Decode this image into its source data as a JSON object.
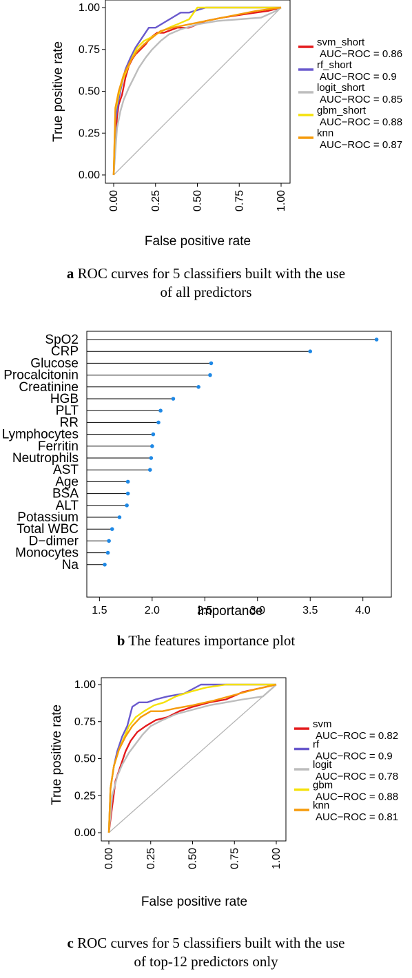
{
  "captions": {
    "a_letter": "a",
    "a_line1": "ROC curves for 5 classifiers built with the use",
    "a_line2": "of all predictors",
    "b_letter": "b",
    "b_line1": "The features importance plot",
    "c_letter": "c",
    "c_line1": "ROC curves for 5 classifiers built with the use",
    "c_line2": "of top-12 predictors only"
  },
  "chart_data": [
    {
      "type": "line",
      "xlabel": "False positive rate",
      "ylabel": "True positive rate",
      "xlim": [
        0,
        1
      ],
      "ylim": [
        0,
        1
      ],
      "ticks": [
        "0.00",
        "0.25",
        "0.50",
        "0.75",
        "1.00"
      ],
      "legend_position": "right",
      "diagonal": true,
      "series": [
        {
          "name": "svm_short",
          "auc_label": "AUC−ROC = 0.86",
          "color": "#e41a1c",
          "x": [
            0,
            0.01,
            0.02,
            0.03,
            0.05,
            0.07,
            0.09,
            0.11,
            0.13,
            0.16,
            0.19,
            0.22,
            0.26,
            0.3,
            0.38,
            0.45,
            0.55,
            0.65,
            0.78,
            0.92,
            1
          ],
          "y": [
            0,
            0.18,
            0.35,
            0.42,
            0.48,
            0.58,
            0.65,
            0.69,
            0.72,
            0.75,
            0.78,
            0.82,
            0.85,
            0.85,
            0.88,
            0.88,
            0.92,
            0.94,
            0.96,
            0.98,
            1
          ]
        },
        {
          "name": "rf_short",
          "auc_label": "AUC−ROC = 0.9",
          "color": "#6a5acd",
          "x": [
            0,
            0.01,
            0.03,
            0.05,
            0.07,
            0.1,
            0.13,
            0.17,
            0.21,
            0.25,
            0.3,
            0.35,
            0.4,
            0.45,
            0.55,
            0.7,
            0.85,
            1
          ],
          "y": [
            0,
            0.32,
            0.45,
            0.55,
            0.63,
            0.7,
            0.76,
            0.82,
            0.88,
            0.88,
            0.91,
            0.94,
            0.97,
            0.97,
            1.0,
            1.0,
            1.0,
            1
          ]
        },
        {
          "name": "logit_short",
          "auc_label": "AUC−ROC = 0.85",
          "color": "#bdbdbd",
          "x": [
            0,
            0.02,
            0.04,
            0.06,
            0.09,
            0.12,
            0.15,
            0.19,
            0.23,
            0.28,
            0.33,
            0.4,
            0.5,
            0.62,
            0.75,
            0.88,
            0.97,
            1
          ],
          "y": [
            0,
            0.28,
            0.38,
            0.45,
            0.52,
            0.58,
            0.64,
            0.7,
            0.75,
            0.8,
            0.84,
            0.87,
            0.9,
            0.92,
            0.93,
            0.94,
            0.98,
            1
          ]
        },
        {
          "name": "gbm_short",
          "auc_label": "AUC−ROC = 0.88",
          "color": "#f5e10b",
          "x": [
            0,
            0.01,
            0.03,
            0.05,
            0.08,
            0.11,
            0.14,
            0.18,
            0.22,
            0.27,
            0.33,
            0.38,
            0.45,
            0.5,
            0.6,
            0.75,
            0.9,
            1
          ],
          "y": [
            0,
            0.38,
            0.48,
            0.56,
            0.63,
            0.7,
            0.76,
            0.8,
            0.82,
            0.85,
            0.88,
            0.9,
            0.93,
            1.0,
            1.0,
            1.0,
            1.0,
            1
          ]
        },
        {
          "name": "knn",
          "auc_label": "AUC−ROC = 0.87",
          "color": "#f59b0b",
          "x": [
            0,
            0.01,
            0.03,
            0.06,
            0.1,
            0.14,
            0.18,
            0.23,
            0.28,
            0.35,
            0.45,
            0.55,
            0.7,
            0.85,
            1
          ],
          "y": [
            0,
            0.4,
            0.5,
            0.6,
            0.68,
            0.74,
            0.78,
            0.82,
            0.86,
            0.88,
            0.9,
            0.92,
            0.95,
            0.98,
            1
          ]
        }
      ]
    },
    {
      "type": "lollipop",
      "xlabel": "Importance",
      "xlim": [
        1.38,
        4.27
      ],
      "xticks": [
        1.5,
        2.0,
        2.5,
        3.0,
        3.5,
        4.0
      ],
      "xtick_labels": [
        "1.5",
        "2.0",
        "2.5",
        "3.0",
        "3.5",
        "4.0"
      ],
      "stem_color": "#000000",
      "point_color": "#1e88e5",
      "categories": [
        "SpO2",
        "CRP",
        "Glucose",
        "Procalcitonin",
        "Creatinine",
        "HGB",
        "PLT",
        "RR",
        "Lymphocytes",
        "Ferritin",
        "Neutrophils",
        "AST",
        "Age",
        "BSA",
        "ALT",
        "Potassium",
        "Total WBC",
        "D−dimer",
        "Monocytes",
        "Na"
      ],
      "values": [
        4.13,
        3.5,
        2.56,
        2.55,
        2.44,
        2.2,
        2.08,
        2.06,
        2.01,
        2.0,
        1.99,
        1.98,
        1.77,
        1.77,
        1.76,
        1.69,
        1.62,
        1.59,
        1.58,
        1.55
      ]
    },
    {
      "type": "line",
      "xlabel": "False positive rate",
      "ylabel": "True positive rate",
      "xlim": [
        0,
        1
      ],
      "ylim": [
        0,
        1
      ],
      "ticks": [
        "0.00",
        "0.25",
        "0.50",
        "0.75",
        "1.00"
      ],
      "legend_position": "right",
      "diagonal": true,
      "series": [
        {
          "name": "svm",
          "auc_label": "AUC−ROC = 0.82",
          "color": "#e41a1c",
          "x": [
            0,
            0.02,
            0.04,
            0.07,
            0.1,
            0.13,
            0.17,
            0.22,
            0.28,
            0.35,
            0.42,
            0.5,
            0.6,
            0.7,
            0.8,
            0.92,
            1
          ],
          "y": [
            0,
            0.18,
            0.35,
            0.45,
            0.55,
            0.62,
            0.68,
            0.72,
            0.76,
            0.78,
            0.82,
            0.85,
            0.88,
            0.9,
            0.95,
            0.98,
            1
          ]
        },
        {
          "name": "rf",
          "auc_label": "AUC−ROC = 0.9",
          "color": "#6a5acd",
          "x": [
            0,
            0.01,
            0.03,
            0.05,
            0.08,
            0.11,
            0.14,
            0.18,
            0.23,
            0.28,
            0.35,
            0.45,
            0.55,
            0.6,
            0.75,
            0.9,
            1
          ],
          "y": [
            0,
            0.3,
            0.45,
            0.55,
            0.65,
            0.72,
            0.85,
            0.88,
            0.88,
            0.9,
            0.92,
            0.94,
            1.0,
            1.0,
            1.0,
            1.0,
            1
          ]
        },
        {
          "name": "logit",
          "auc_label": "AUC−ROC = 0.78",
          "color": "#bdbdbd",
          "x": [
            0,
            0.02,
            0.05,
            0.08,
            0.12,
            0.16,
            0.2,
            0.25,
            0.32,
            0.4,
            0.5,
            0.6,
            0.7,
            0.8,
            0.92,
            1
          ],
          "y": [
            0,
            0.25,
            0.38,
            0.46,
            0.54,
            0.6,
            0.66,
            0.72,
            0.76,
            0.8,
            0.83,
            0.86,
            0.88,
            0.9,
            0.92,
            1
          ]
        },
        {
          "name": "gbm",
          "auc_label": "AUC−ROC = 0.88",
          "color": "#f5e10b",
          "x": [
            0,
            0.01,
            0.03,
            0.06,
            0.09,
            0.12,
            0.16,
            0.21,
            0.27,
            0.33,
            0.4,
            0.48,
            0.58,
            0.7,
            0.85,
            1
          ],
          "y": [
            0,
            0.3,
            0.45,
            0.56,
            0.64,
            0.72,
            0.78,
            0.82,
            0.86,
            0.88,
            0.92,
            0.95,
            0.98,
            1.0,
            1.0,
            1
          ]
        },
        {
          "name": "knn",
          "auc_label": "AUC−ROC = 0.81",
          "color": "#f59b0b",
          "x": [
            0,
            0.01,
            0.03,
            0.06,
            0.1,
            0.14,
            0.19,
            0.25,
            0.32,
            0.4,
            0.5,
            0.62,
            0.75,
            0.88,
            1
          ],
          "y": [
            0,
            0.3,
            0.45,
            0.56,
            0.65,
            0.72,
            0.78,
            0.82,
            0.82,
            0.84,
            0.86,
            0.89,
            0.93,
            0.97,
            1
          ]
        }
      ]
    }
  ]
}
